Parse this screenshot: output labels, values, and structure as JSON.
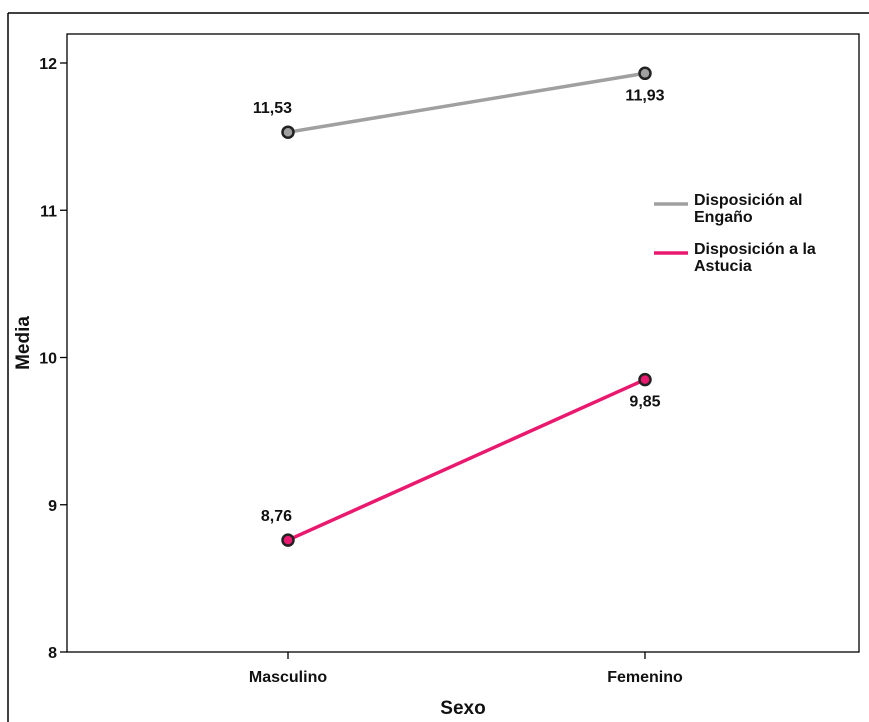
{
  "chart_data": {
    "type": "line",
    "categories": [
      "Masculino",
      "Femenino"
    ],
    "xlabel": "Sexo",
    "ylabel": "Media",
    "ylim": [
      8,
      12
    ],
    "yticks": [
      "8",
      "9",
      "10",
      "11",
      "12"
    ],
    "legend_position": "right",
    "grid": false,
    "series": [
      {
        "name": "Disposición al Engaño",
        "legend_lines": [
          "Disposición al",
          "Engaño"
        ],
        "values": [
          11.53,
          11.93
        ],
        "labels": [
          "11,53",
          "11,93"
        ],
        "color": "#a0a0a0"
      },
      {
        "name": "Disposición a la Astucia",
        "legend_lines": [
          "Disposición a la",
          "Astucia"
        ],
        "values": [
          8.76,
          9.85
        ],
        "labels": [
          "8,76",
          "9,85"
        ],
        "color": "#e8196e"
      }
    ]
  }
}
